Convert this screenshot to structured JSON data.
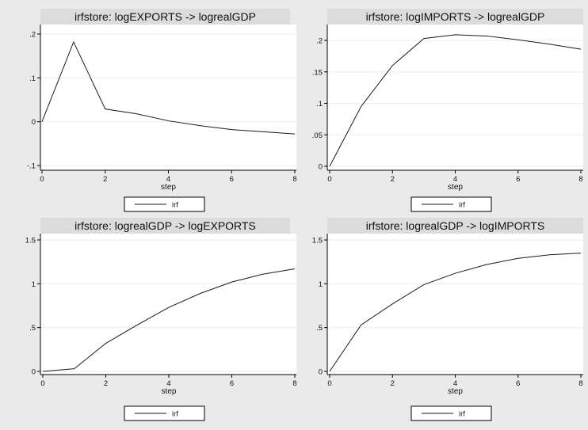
{
  "chart_data": [
    {
      "type": "line",
      "title": "irfstore: logEXPORTS -> logrealGDP",
      "xlabel": "step",
      "ylabel": "",
      "x": [
        0,
        1,
        2,
        3,
        4,
        5,
        6,
        7,
        8
      ],
      "series": [
        {
          "name": "irf",
          "values": [
            0.0,
            0.182,
            0.029,
            0.018,
            0.002,
            -0.009,
            -0.018,
            -0.023,
            -0.028
          ]
        }
      ],
      "xlim": [
        0,
        8
      ],
      "ylim": [
        -0.1,
        0.2
      ],
      "xticks": [
        0,
        2,
        4,
        6,
        8
      ],
      "xtick_labels": [
        "0",
        "2",
        "4",
        "6",
        "8"
      ],
      "yticks": [
        -0.1,
        0,
        0.1,
        0.2
      ],
      "ytick_labels": [
        "-.1",
        "0",
        ".1",
        ".2"
      ],
      "grid": true,
      "legend": "bottom"
    },
    {
      "type": "line",
      "title": "irfstore: logIMPORTS -> logrealGDP",
      "xlabel": "step",
      "ylabel": "",
      "x": [
        0,
        1,
        2,
        3,
        4,
        5,
        6,
        7,
        8
      ],
      "series": [
        {
          "name": "irf",
          "values": [
            0.0,
            0.095,
            0.16,
            0.203,
            0.209,
            0.207,
            0.201,
            0.194,
            0.186
          ]
        }
      ],
      "xlim": [
        0,
        8
      ],
      "ylim": [
        0,
        0.2
      ],
      "xticks": [
        0,
        2,
        4,
        6,
        8
      ],
      "xtick_labels": [
        "0",
        "2",
        "4",
        "6",
        "8"
      ],
      "yticks": [
        0,
        0.05,
        0.1,
        0.15,
        0.2
      ],
      "ytick_labels": [
        "0",
        ".05",
        ".1",
        ".15",
        ".2"
      ],
      "grid": true,
      "legend": "bottom"
    },
    {
      "type": "line",
      "title": "irfstore: logrealGDP -> logEXPORTS",
      "xlabel": "step",
      "ylabel": "",
      "x": [
        0,
        1,
        2,
        3,
        4,
        5,
        6,
        7,
        8
      ],
      "series": [
        {
          "name": "irf",
          "values": [
            0.0,
            0.03,
            0.32,
            0.53,
            0.73,
            0.89,
            1.02,
            1.11,
            1.17
          ]
        }
      ],
      "xlim": [
        0,
        8
      ],
      "ylim": [
        0,
        1.5
      ],
      "xticks": [
        0,
        2,
        4,
        6,
        8
      ],
      "xtick_labels": [
        "0",
        "2",
        "4",
        "6",
        "8"
      ],
      "yticks": [
        0,
        0.5,
        1,
        1.5
      ],
      "ytick_labels": [
        "0",
        ".5",
        "1",
        "1.5"
      ],
      "grid": true,
      "legend": "bottom"
    },
    {
      "type": "line",
      "title": "irfstore: logrealGDP -> logIMPORTS",
      "xlabel": "step",
      "ylabel": "",
      "x": [
        0,
        1,
        2,
        3,
        4,
        5,
        6,
        7,
        8
      ],
      "series": [
        {
          "name": "irf",
          "values": [
            0.0,
            0.53,
            0.77,
            0.99,
            1.12,
            1.22,
            1.29,
            1.33,
            1.35
          ]
        }
      ],
      "xlim": [
        0,
        8
      ],
      "ylim": [
        0,
        1.5
      ],
      "xticks": [
        0,
        2,
        4,
        6,
        8
      ],
      "xtick_labels": [
        "0",
        "2",
        "4",
        "6",
        "8"
      ],
      "yticks": [
        0,
        0.5,
        1,
        1.5
      ],
      "ytick_labels": [
        "0",
        ".5",
        "1",
        "1.5"
      ],
      "grid": true,
      "legend": "bottom"
    }
  ],
  "colors": {
    "background": "#eaeaea",
    "plot_background": "#ffffff",
    "title_bar": "#dcdcdc",
    "line": "#1a1a1a",
    "grid": "#e8ecee"
  }
}
